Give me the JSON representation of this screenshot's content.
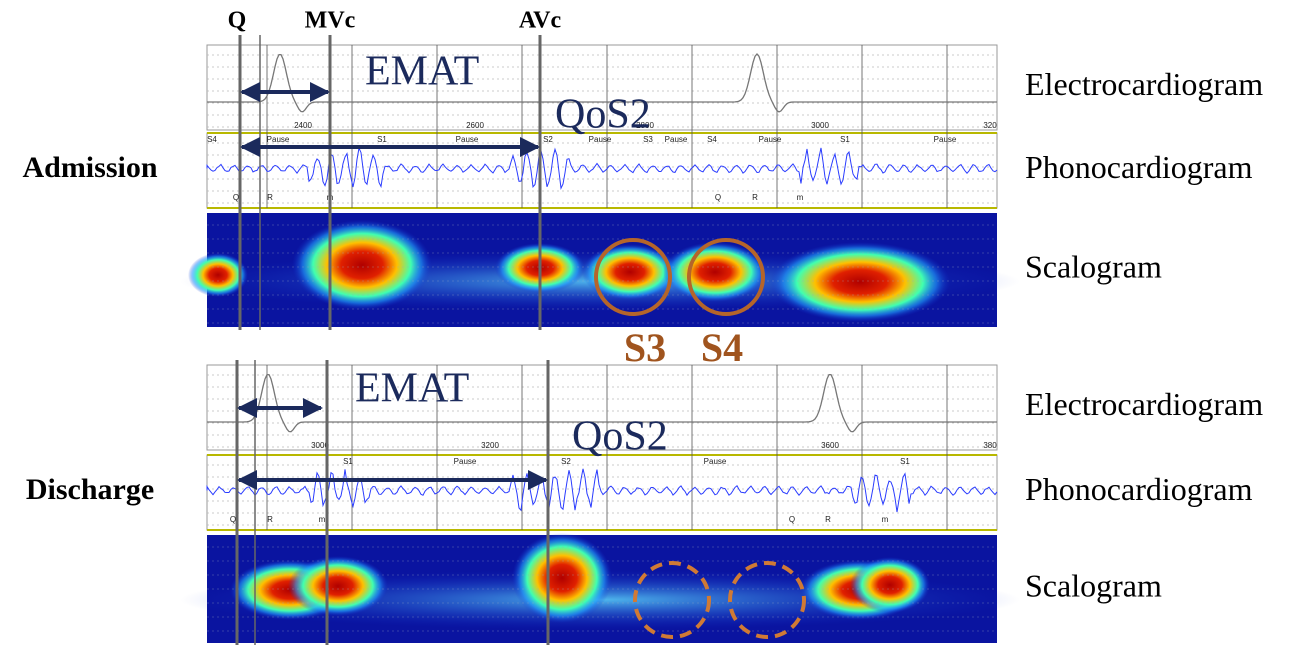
{
  "column_labels": [
    "Q",
    "MVc",
    "AVc"
  ],
  "panels": [
    {
      "label": "Admission",
      "tracks": [
        "Electrocardiogram",
        "Phonocardiogram",
        "Scalogram"
      ],
      "emat": "EMAT",
      "qos2": "QoS2",
      "ecg_ticks": [
        "2400",
        "2600",
        "2800",
        "3000",
        "320"
      ],
      "phono_segments": [
        "S4",
        "Pause",
        "S1",
        "Pause",
        "S2",
        "Pause",
        "S3",
        "Pause",
        "S4",
        "Pause",
        "S1",
        "Pause"
      ],
      "phono_markers": [
        "Q",
        "R",
        "m",
        "Q",
        "R",
        "m"
      ]
    },
    {
      "label": "Discharge",
      "tracks": [
        "Electrocardiogram",
        "Phonocardiogram",
        "Scalogram"
      ],
      "emat": "EMAT",
      "qos2": "QoS2",
      "ecg_ticks": [
        "3000",
        "3200",
        "3600",
        "380"
      ],
      "phono_segments": [
        "S1",
        "Pause",
        "S2",
        "Pause",
        "S1"
      ],
      "phono_markers": [
        "Q",
        "R",
        "m",
        "Q",
        "R",
        "m"
      ]
    }
  ],
  "extra_sounds": [
    "S3",
    "S4"
  ]
}
